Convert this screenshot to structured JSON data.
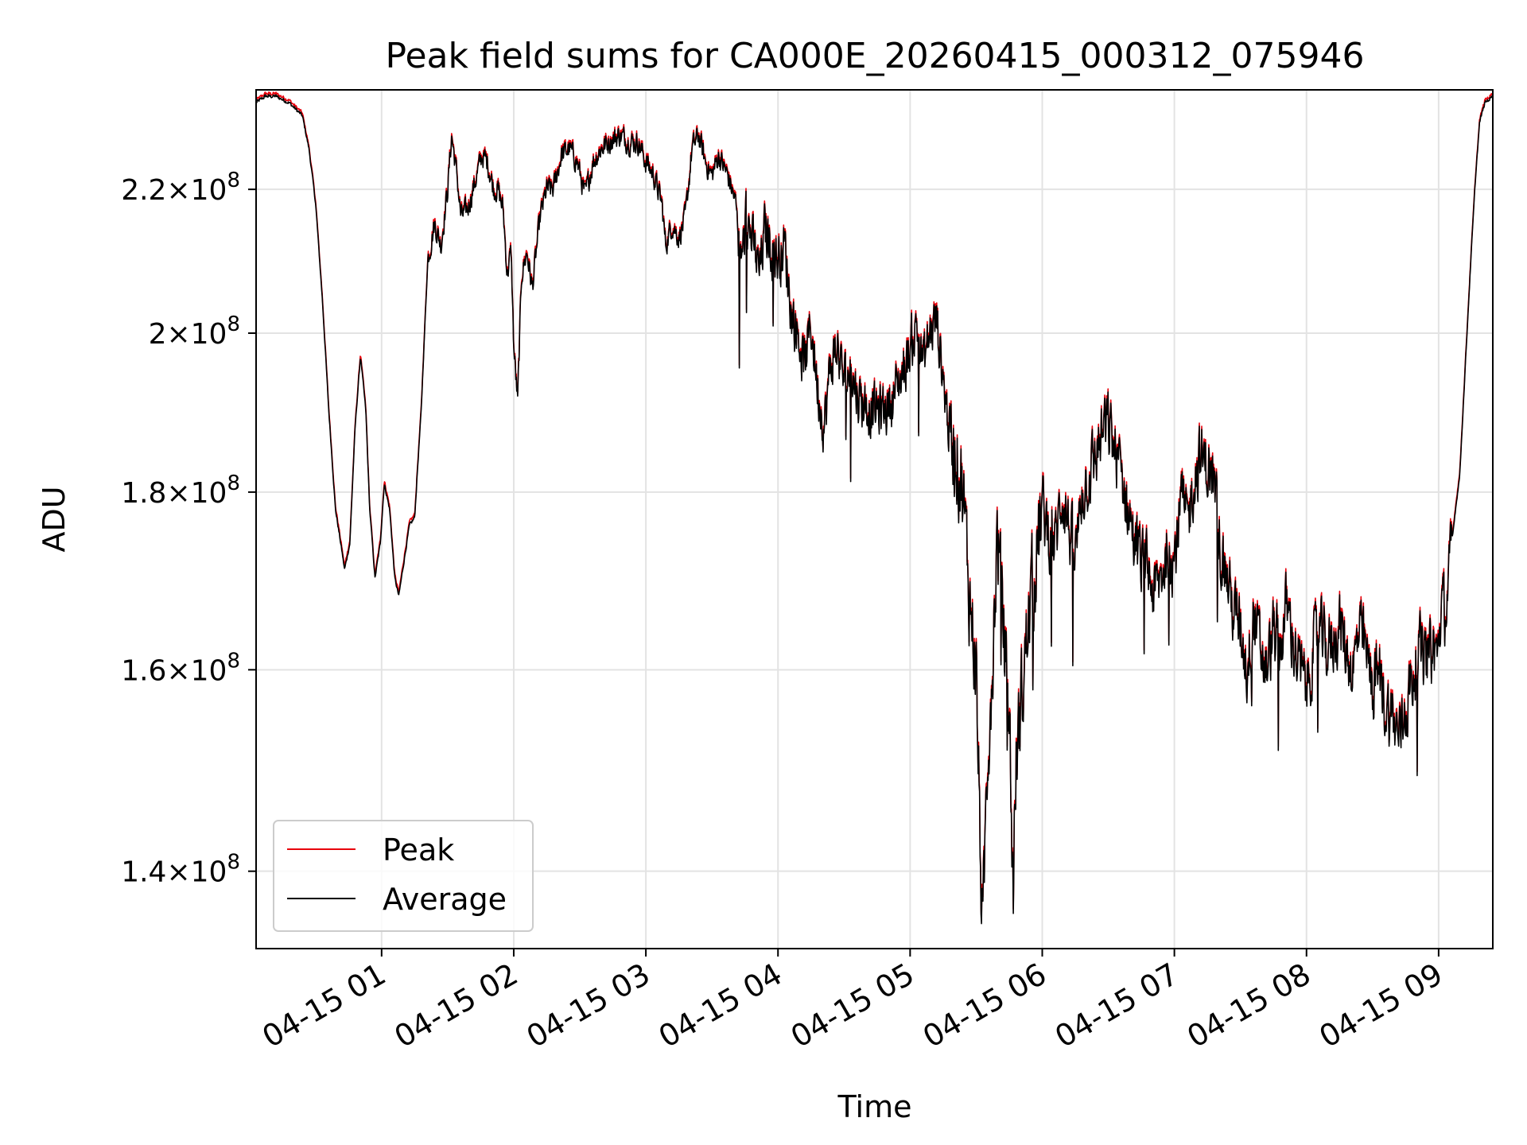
{
  "chart_data": {
    "type": "line",
    "title": "Peak field sums for CA000E_20260415_000312_075946",
    "xlabel": "Time",
    "ylabel": "ADU",
    "y_scale": "log",
    "x_range": [
      "04-15 00:03",
      "04-15 09:26"
    ],
    "ylim": [
      133000000,
      235000000
    ],
    "grid": true,
    "legend_position": "lower-left",
    "x_ticks": [
      {
        "label": "04-15 01",
        "hour": 1
      },
      {
        "label": "04-15 02",
        "hour": 2
      },
      {
        "label": "04-15 03",
        "hour": 3
      },
      {
        "label": "04-15 04",
        "hour": 4
      },
      {
        "label": "04-15 05",
        "hour": 5
      },
      {
        "label": "04-15 06",
        "hour": 6
      },
      {
        "label": "04-15 07",
        "hour": 7
      },
      {
        "label": "04-15 08",
        "hour": 8
      },
      {
        "label": "04-15 09",
        "hour": 9
      }
    ],
    "y_ticks": [
      {
        "mantissa": "1.4",
        "exponent": "8",
        "value": 140000000
      },
      {
        "mantissa": "1.6",
        "exponent": "8",
        "value": 160000000
      },
      {
        "mantissa": "1.8",
        "exponent": "8",
        "value": 180000000
      },
      {
        "mantissa": "2",
        "exponent": "8",
        "value": 200000000
      },
      {
        "mantissa": "2.2",
        "exponent": "8",
        "value": 220000000
      }
    ],
    "series_keyframes_hours_vs_1e8ADU": [
      [
        0.05,
        2.33
      ],
      [
        0.12,
        2.34
      ],
      [
        0.2,
        2.34
      ],
      [
        0.3,
        2.33
      ],
      [
        0.4,
        2.31
      ],
      [
        0.45,
        2.26
      ],
      [
        0.5,
        2.18
      ],
      [
        0.55,
        2.05
      ],
      [
        0.6,
        1.9
      ],
      [
        0.65,
        1.78
      ],
      [
        0.72,
        1.71
      ],
      [
        0.76,
        1.74
      ],
      [
        0.8,
        1.88
      ],
      [
        0.84,
        1.97
      ],
      [
        0.88,
        1.9
      ],
      [
        0.91,
        1.78
      ],
      [
        0.95,
        1.7
      ],
      [
        0.99,
        1.74
      ],
      [
        1.02,
        1.81
      ],
      [
        1.06,
        1.78
      ],
      [
        1.1,
        1.7
      ],
      [
        1.13,
        1.68
      ],
      [
        1.17,
        1.72
      ],
      [
        1.21,
        1.76
      ],
      [
        1.25,
        1.77
      ],
      [
        1.3,
        1.9
      ],
      [
        1.35,
        2.1
      ],
      [
        1.4,
        2.15
      ],
      [
        1.45,
        2.12
      ],
      [
        1.5,
        2.2
      ],
      [
        1.53,
        2.28
      ],
      [
        1.57,
        2.22
      ],
      [
        1.6,
        2.16
      ],
      [
        1.65,
        2.17
      ],
      [
        1.72,
        2.22
      ],
      [
        1.76,
        2.25
      ],
      [
        1.8,
        2.24
      ],
      [
        1.85,
        2.2
      ],
      [
        1.88,
        2.2
      ],
      [
        1.92,
        2.17
      ],
      [
        1.95,
        2.08
      ],
      [
        1.98,
        2.11
      ],
      [
        2.0,
        1.98
      ],
      [
        2.03,
        1.91
      ],
      [
        2.06,
        2.08
      ],
      [
        2.1,
        2.11
      ],
      [
        2.14,
        2.06
      ],
      [
        2.2,
        2.16
      ],
      [
        2.25,
        2.2
      ],
      [
        2.3,
        2.2
      ],
      [
        2.36,
        2.25
      ],
      [
        2.42,
        2.26
      ],
      [
        2.48,
        2.24
      ],
      [
        2.54,
        2.19
      ],
      [
        2.6,
        2.24
      ],
      [
        2.66,
        2.26
      ],
      [
        2.72,
        2.27
      ],
      [
        2.8,
        2.28
      ],
      [
        2.88,
        2.27
      ],
      [
        2.94,
        2.27
      ],
      [
        3.0,
        2.24
      ],
      [
        3.06,
        2.22
      ],
      [
        3.12,
        2.18
      ],
      [
        3.15,
        2.12
      ],
      [
        3.2,
        2.15
      ],
      [
        3.25,
        2.13
      ],
      [
        3.3,
        2.16
      ],
      [
        3.35,
        2.26
      ],
      [
        3.4,
        2.28
      ],
      [
        3.45,
        2.24
      ],
      [
        3.5,
        2.22
      ],
      [
        3.55,
        2.25
      ],
      [
        3.62,
        2.22
      ],
      [
        3.68,
        2.18
      ],
      [
        3.72,
        2.09
      ],
      [
        3.76,
        2.16
      ],
      [
        3.8,
        2.13
      ],
      [
        3.86,
        2.08
      ],
      [
        3.9,
        2.14
      ],
      [
        3.95,
        2.12
      ],
      [
        4.0,
        2.1
      ],
      [
        4.05,
        2.12
      ],
      [
        4.1,
        2.03
      ],
      [
        4.15,
        2.0
      ],
      [
        4.2,
        1.96
      ],
      [
        4.25,
        2.01
      ],
      [
        4.3,
        1.93
      ],
      [
        4.35,
        1.88
      ],
      [
        4.4,
        1.96
      ],
      [
        4.45,
        1.98
      ],
      [
        4.5,
        1.94
      ],
      [
        4.55,
        1.95
      ],
      [
        4.6,
        1.92
      ],
      [
        4.7,
        1.9
      ],
      [
        4.8,
        1.9
      ],
      [
        4.85,
        1.91
      ],
      [
        4.9,
        1.93
      ],
      [
        4.95,
        1.95
      ],
      [
        5.0,
        1.98
      ],
      [
        5.05,
        2.01
      ],
      [
        5.1,
        1.96
      ],
      [
        5.15,
        2.0
      ],
      [
        5.2,
        2.02
      ],
      [
        5.25,
        1.94
      ],
      [
        5.3,
        1.87
      ],
      [
        5.35,
        1.85
      ],
      [
        5.4,
        1.8
      ],
      [
        5.45,
        1.68
      ],
      [
        5.5,
        1.6
      ],
      [
        5.52,
        1.48
      ],
      [
        5.55,
        1.33
      ],
      [
        5.58,
        1.5
      ],
      [
        5.62,
        1.6
      ],
      [
        5.66,
        1.75
      ],
      [
        5.7,
        1.66
      ],
      [
        5.75,
        1.55
      ],
      [
        5.78,
        1.38
      ],
      [
        5.8,
        1.5
      ],
      [
        5.85,
        1.58
      ],
      [
        5.9,
        1.66
      ],
      [
        5.95,
        1.72
      ],
      [
        6.0,
        1.78
      ],
      [
        6.05,
        1.75
      ],
      [
        6.1,
        1.74
      ],
      [
        6.15,
        1.8
      ],
      [
        6.2,
        1.76
      ],
      [
        6.25,
        1.72
      ],
      [
        6.3,
        1.8
      ],
      [
        6.35,
        1.82
      ],
      [
        6.4,
        1.84
      ],
      [
        6.45,
        1.87
      ],
      [
        6.5,
        1.88
      ],
      [
        6.55,
        1.85
      ],
      [
        6.6,
        1.82
      ],
      [
        6.65,
        1.78
      ],
      [
        6.7,
        1.74
      ],
      [
        6.75,
        1.72
      ],
      [
        6.8,
        1.71
      ],
      [
        6.85,
        1.68
      ],
      [
        6.9,
        1.7
      ],
      [
        6.95,
        1.74
      ],
      [
        7.0,
        1.72
      ],
      [
        7.05,
        1.79
      ],
      [
        7.1,
        1.76
      ],
      [
        7.15,
        1.82
      ],
      [
        7.2,
        1.84
      ],
      [
        7.25,
        1.83
      ],
      [
        7.3,
        1.81
      ],
      [
        7.35,
        1.73
      ],
      [
        7.4,
        1.7
      ],
      [
        7.45,
        1.66
      ],
      [
        7.5,
        1.65
      ],
      [
        7.55,
        1.6
      ],
      [
        7.6,
        1.66
      ],
      [
        7.65,
        1.62
      ],
      [
        7.7,
        1.6
      ],
      [
        7.75,
        1.64
      ],
      [
        7.8,
        1.62
      ],
      [
        7.85,
        1.67
      ],
      [
        7.9,
        1.63
      ],
      [
        7.95,
        1.6
      ],
      [
        8.0,
        1.58
      ],
      [
        8.05,
        1.62
      ],
      [
        8.1,
        1.64
      ],
      [
        8.15,
        1.62
      ],
      [
        8.2,
        1.63
      ],
      [
        8.25,
        1.65
      ],
      [
        8.3,
        1.62
      ],
      [
        8.35,
        1.6
      ],
      [
        8.4,
        1.64
      ],
      [
        8.45,
        1.62
      ],
      [
        8.5,
        1.58
      ],
      [
        8.55,
        1.6
      ],
      [
        8.6,
        1.56
      ],
      [
        8.65,
        1.55
      ],
      [
        8.7,
        1.53
      ],
      [
        8.75,
        1.56
      ],
      [
        8.8,
        1.59
      ],
      [
        8.85,
        1.62
      ],
      [
        8.9,
        1.61
      ],
      [
        8.95,
        1.62
      ],
      [
        9.0,
        1.62
      ],
      [
        9.02,
        1.67
      ],
      [
        9.05,
        1.66
      ],
      [
        9.08,
        1.7
      ],
      [
        9.12,
        1.77
      ],
      [
        9.16,
        1.82
      ],
      [
        9.2,
        1.95
      ],
      [
        9.25,
        2.12
      ],
      [
        9.28,
        2.22
      ],
      [
        9.31,
        2.3
      ],
      [
        9.35,
        2.33
      ],
      [
        9.41,
        2.34
      ]
    ],
    "series": [
      {
        "name": "Peak",
        "color": "#e8000b",
        "offset_1e8ADU": 0.004
      },
      {
        "name": "Average",
        "color": "#000000",
        "offset_1e8ADU": 0.0
      }
    ]
  }
}
